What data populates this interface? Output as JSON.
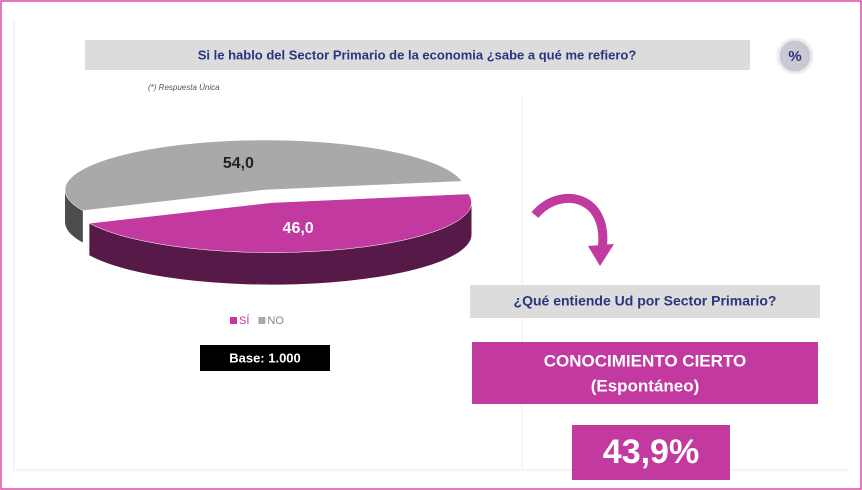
{
  "chart_data": {
    "type": "pie",
    "title": "Si le hablo del Sector Primario de la economia ¿sabe a qué me refiero?",
    "note": "(*) Respuesta Única",
    "unit_badge": "%",
    "categories": [
      "SÍ",
      "NO"
    ],
    "values": [
      46.0,
      54.0
    ],
    "value_labels": [
      "46,0",
      "54,0"
    ],
    "colors": [
      "#c2399f",
      "#a9a9a9"
    ],
    "legend": "bottom",
    "base": "Base: 1.000"
  },
  "panel": {
    "question": "¿Qué entiende Ud por Sector Primario?",
    "heading": "CONOCIMIENTO CIERTO",
    "subheading": "(Espontáneo)",
    "result": "43,9%"
  }
}
